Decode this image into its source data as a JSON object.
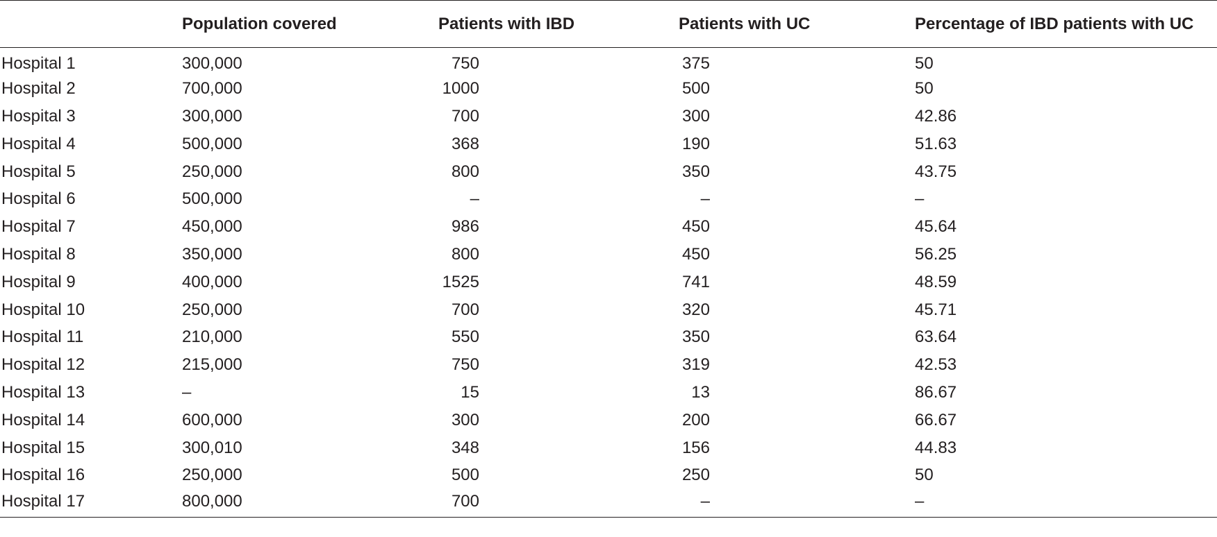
{
  "table": {
    "headers": [
      "",
      "Population covered",
      "Patients with IBD",
      "Patients with UC",
      "Percentage of IBD patients with UC"
    ],
    "rows": [
      [
        "Hospital 1",
        "300,000",
        "750",
        "375",
        "50"
      ],
      [
        "Hospital 2",
        "700,000",
        "1000",
        "500",
        "50"
      ],
      [
        "Hospital 3",
        "300,000",
        "700",
        "300",
        "42.86"
      ],
      [
        "Hospital 4",
        "500,000",
        "368",
        "190",
        "51.63"
      ],
      [
        "Hospital 5",
        "250,000",
        "800",
        "350",
        "43.75"
      ],
      [
        "Hospital 6",
        "500,000",
        "–",
        "–",
        "–"
      ],
      [
        "Hospital 7",
        "450,000",
        "986",
        "450",
        "45.64"
      ],
      [
        "Hospital 8",
        "350,000",
        "800",
        "450",
        "56.25"
      ],
      [
        "Hospital 9",
        "400,000",
        "1525",
        "741",
        "48.59"
      ],
      [
        "Hospital 10",
        "250,000",
        "700",
        "320",
        "45.71"
      ],
      [
        "Hospital 11",
        "210,000",
        "550",
        "350",
        "63.64"
      ],
      [
        "Hospital 12",
        "215,000",
        "750",
        "319",
        "42.53"
      ],
      [
        "Hospital 13",
        "–",
        "15",
        "13",
        "86.67"
      ],
      [
        "Hospital 14",
        "600,000",
        "300",
        "200",
        "66.67"
      ],
      [
        "Hospital 15",
        "300,010",
        "348",
        "156",
        "44.83"
      ],
      [
        "Hospital 16",
        "250,000",
        "500",
        "250",
        "50"
      ],
      [
        "Hospital 17",
        "800,000",
        "700",
        "–",
        "–"
      ]
    ]
  }
}
